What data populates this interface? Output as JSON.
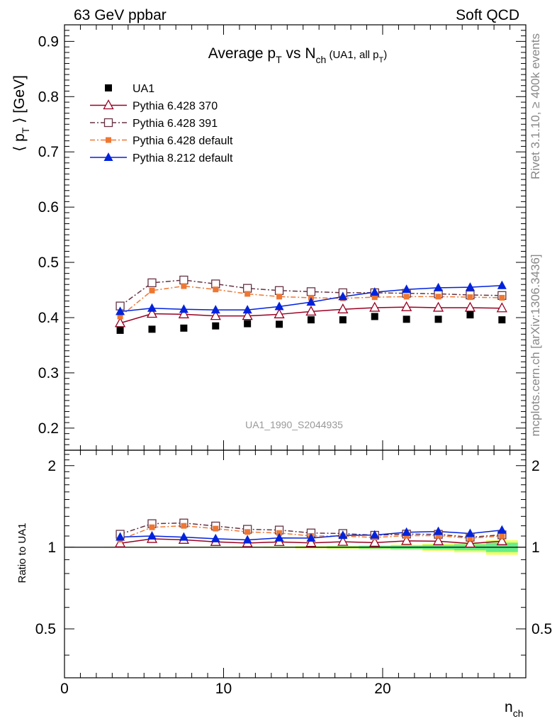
{
  "header": {
    "energy_label": "63 GeV ppbar",
    "process_label": "Soft QCD"
  },
  "side_labels": {
    "rivet": "Rivet 3.1.10, ≥ 400k events",
    "mcplots": "mcplots.cern.ch [arXiv:1306.3436]"
  },
  "chart_data": {
    "type": "line",
    "title": {
      "main": "Average p",
      "main_sub": "T",
      "mid": " vs N",
      "mid_sub": "ch",
      "small": " (UA1, all p",
      "small_sub": "T",
      "small_end": ")"
    },
    "analysis_id": "UA1_1990_S2044935",
    "xlabel": {
      "main": "n",
      "sub": "ch"
    },
    "ylabel": {
      "pre": "⟨ p",
      "sub": "T",
      "post": " ⟩ [GeV]"
    },
    "ratio_ylabel": "Ratio to UA1",
    "xlim": [
      0,
      29
    ],
    "ylim": [
      0.16,
      0.93
    ],
    "ratio_ylim": [
      0.33,
      2.28
    ],
    "xticks": [
      0,
      10,
      20
    ],
    "yticks": [
      0.2,
      0.3,
      0.4,
      0.5,
      0.6,
      0.7,
      0.8,
      0.9
    ],
    "ratio_yticks": [
      0.5,
      1,
      2
    ],
    "x": [
      3.5,
      5.5,
      7.5,
      9.5,
      11.5,
      13.5,
      15.5,
      17.5,
      19.5,
      21.5,
      23.5,
      25.5,
      27.5
    ],
    "data": {
      "name": "UA1",
      "values": [
        0.377,
        0.379,
        0.381,
        0.385,
        0.389,
        0.388,
        0.396,
        0.396,
        0.402,
        0.397,
        0.397,
        0.405,
        0.396
      ]
    },
    "ratio_band": {
      "inner": [
        0.002,
        0.002,
        0.002,
        0.002,
        0.003,
        0.004,
        0.006,
        0.008,
        0.011,
        0.015,
        0.02,
        0.026,
        0.04
      ],
      "outer": [
        0.004,
        0.004,
        0.004,
        0.005,
        0.006,
        0.007,
        0.01,
        0.013,
        0.017,
        0.022,
        0.03,
        0.042,
        0.062
      ],
      "inner_color": "#66ee88",
      "outer_color": "#f0ff66"
    },
    "series": [
      {
        "name": "Pythia 6.428 370",
        "color": "#990022",
        "marker": "open-triangle",
        "dash": "solid",
        "values": [
          0.39,
          0.407,
          0.406,
          0.403,
          0.403,
          0.406,
          0.411,
          0.415,
          0.418,
          0.419,
          0.418,
          0.418,
          0.417
        ]
      },
      {
        "name": "Pythia 6.428 391",
        "color": "#663344",
        "marker": "open-square",
        "dash": "dashdot",
        "values": [
          0.421,
          0.463,
          0.468,
          0.461,
          0.453,
          0.449,
          0.447,
          0.445,
          0.445,
          0.444,
          0.443,
          0.441,
          0.44
        ]
      },
      {
        "name": "Pythia 6.428 default",
        "color": "#ee7733",
        "marker": "filled-square",
        "dash": "dashdot",
        "values": [
          0.402,
          0.449,
          0.457,
          0.451,
          0.443,
          0.438,
          0.436,
          0.435,
          0.437,
          0.438,
          0.438,
          0.437,
          0.436
        ]
      },
      {
        "name": "Pythia 8.212 default",
        "color": "#0022dd",
        "marker": "filled-triangle",
        "dash": "solid",
        "values": [
          0.411,
          0.417,
          0.415,
          0.414,
          0.414,
          0.42,
          0.428,
          0.438,
          0.446,
          0.451,
          0.454,
          0.455,
          0.458
        ]
      }
    ]
  }
}
